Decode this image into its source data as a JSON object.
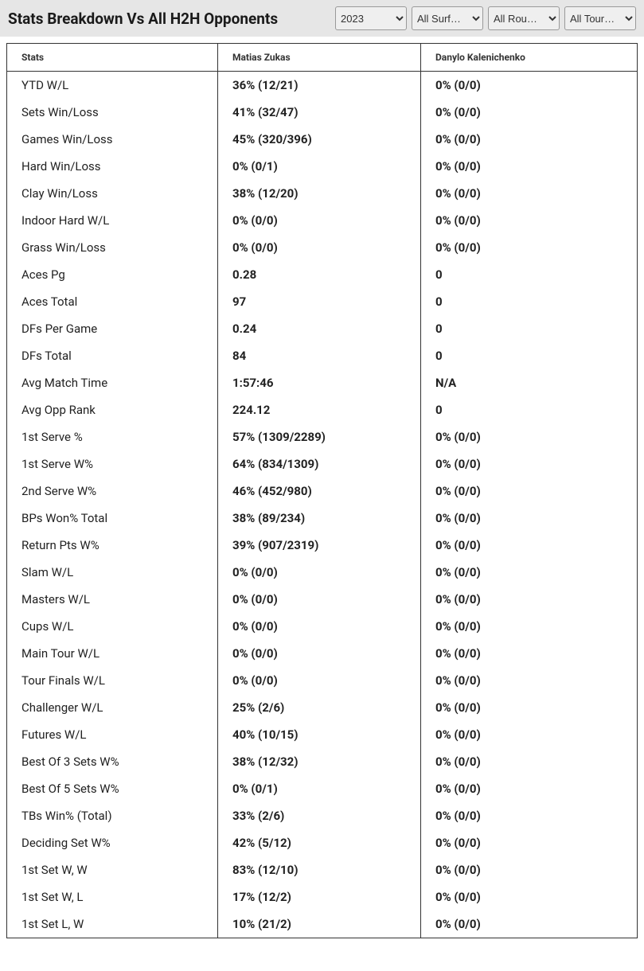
{
  "header": {
    "title": "Stats Breakdown Vs All H2H Opponents"
  },
  "filters": {
    "year": "2023",
    "surface": "All Surf…",
    "round": "All Rou…",
    "tour": "All Tour…"
  },
  "table": {
    "columns": [
      "Stats",
      "Matias Zukas",
      "Danylo Kalenichenko"
    ],
    "rows": [
      [
        "YTD W/L",
        "36% (12/21)",
        "0% (0/0)"
      ],
      [
        "Sets Win/Loss",
        "41% (32/47)",
        "0% (0/0)"
      ],
      [
        "Games Win/Loss",
        "45% (320/396)",
        "0% (0/0)"
      ],
      [
        "Hard Win/Loss",
        "0% (0/1)",
        "0% (0/0)"
      ],
      [
        "Clay Win/Loss",
        "38% (12/20)",
        "0% (0/0)"
      ],
      [
        "Indoor Hard W/L",
        "0% (0/0)",
        "0% (0/0)"
      ],
      [
        "Grass Win/Loss",
        "0% (0/0)",
        "0% (0/0)"
      ],
      [
        "Aces Pg",
        "0.28",
        "0"
      ],
      [
        "Aces Total",
        "97",
        "0"
      ],
      [
        "DFs Per Game",
        "0.24",
        "0"
      ],
      [
        "DFs Total",
        "84",
        "0"
      ],
      [
        "Avg Match Time",
        "1:57:46",
        "N/A"
      ],
      [
        "Avg Opp Rank",
        "224.12",
        "0"
      ],
      [
        "1st Serve %",
        "57% (1309/2289)",
        "0% (0/0)"
      ],
      [
        "1st Serve W%",
        "64% (834/1309)",
        "0% (0/0)"
      ],
      [
        "2nd Serve W%",
        "46% (452/980)",
        "0% (0/0)"
      ],
      [
        "BPs Won% Total",
        "38% (89/234)",
        "0% (0/0)"
      ],
      [
        "Return Pts W%",
        "39% (907/2319)",
        "0% (0/0)"
      ],
      [
        "Slam W/L",
        "0% (0/0)",
        "0% (0/0)"
      ],
      [
        "Masters W/L",
        "0% (0/0)",
        "0% (0/0)"
      ],
      [
        "Cups W/L",
        "0% (0/0)",
        "0% (0/0)"
      ],
      [
        "Main Tour W/L",
        "0% (0/0)",
        "0% (0/0)"
      ],
      [
        "Tour Finals W/L",
        "0% (0/0)",
        "0% (0/0)"
      ],
      [
        "Challenger W/L",
        "25% (2/6)",
        "0% (0/0)"
      ],
      [
        "Futures W/L",
        "40% (10/15)",
        "0% (0/0)"
      ],
      [
        "Best Of 3 Sets W%",
        "38% (12/32)",
        "0% (0/0)"
      ],
      [
        "Best Of 5 Sets W%",
        "0% (0/1)",
        "0% (0/0)"
      ],
      [
        "TBs Win% (Total)",
        "33% (2/6)",
        "0% (0/0)"
      ],
      [
        "Deciding Set W%",
        "42% (5/12)",
        "0% (0/0)"
      ],
      [
        "1st Set W, W",
        "83% (12/10)",
        "0% (0/0)"
      ],
      [
        "1st Set W, L",
        "17% (12/2)",
        "0% (0/0)"
      ],
      [
        "1st Set L, W",
        "10% (21/2)",
        "0% (0/0)"
      ]
    ]
  },
  "styling": {
    "header_bg": "#e6e6e6",
    "border_color": "#333333",
    "title_fontsize": 19,
    "th_fontsize": 12,
    "td_fontsize": 15
  }
}
